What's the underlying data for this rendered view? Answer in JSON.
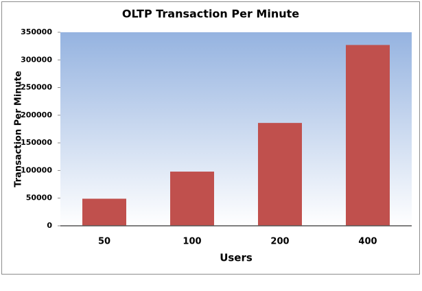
{
  "chart_data": {
    "type": "bar",
    "title": "OLTP Transaction Per Minute",
    "x_label": "Users",
    "y_label": "Transaction Per Minute",
    "categories": [
      "50",
      "100",
      "200",
      "400"
    ],
    "values": [
      49000,
      98000,
      186000,
      327000
    ],
    "color": "#c0504d",
    "ylim": [
      0,
      350000
    ],
    "yticks": [
      0,
      50000,
      100000,
      150000,
      200000,
      250000,
      300000,
      350000
    ],
    "grid": false
  }
}
